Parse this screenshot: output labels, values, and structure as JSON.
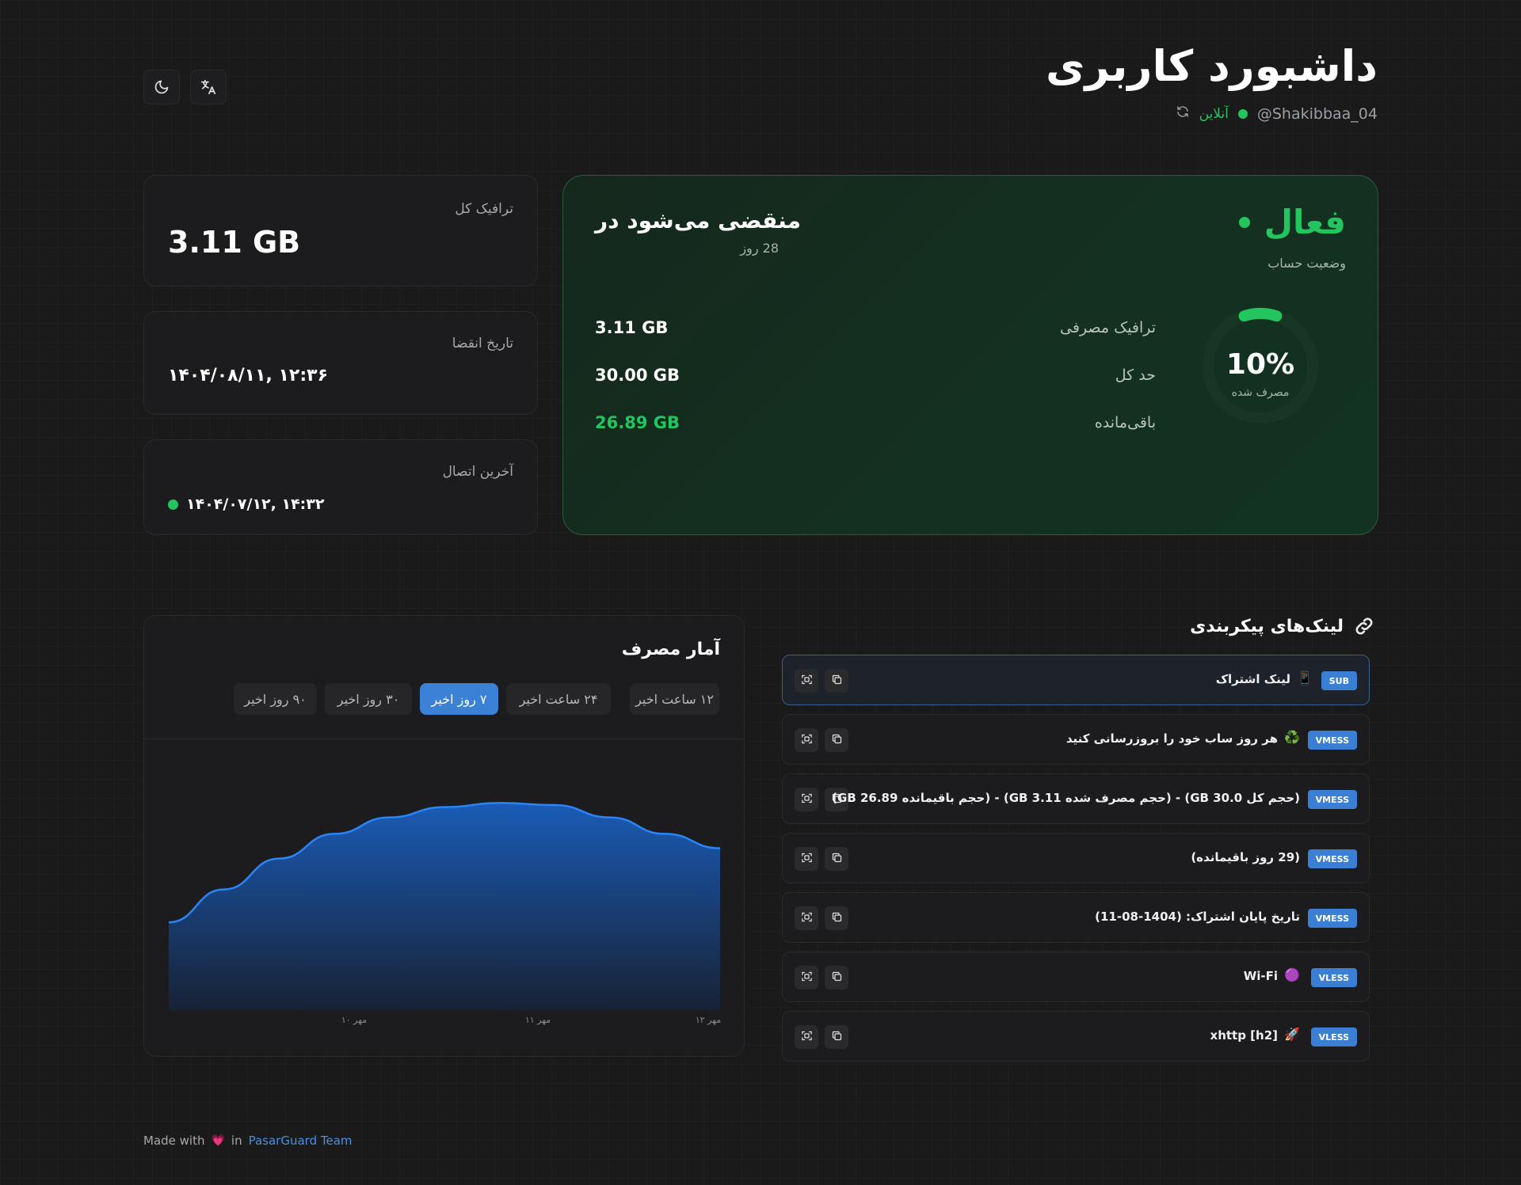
{
  "header": {
    "title": "داشبورد کاربری",
    "username": "@Shakibbaa_04",
    "online_label": "آنلاین",
    "theme_icon": "moon-icon",
    "language_icon": "translate-icon",
    "refresh_icon": "refresh-icon"
  },
  "info_cards": {
    "total_traffic": {
      "label": "ترافیک کل",
      "value": "3.11 GB"
    },
    "expiry_date": {
      "label": "تاریخ انقضا",
      "value": "۱۴۰۴/۰۸/۱۱, ۱۲:۳۶"
    },
    "last_connection": {
      "label": "آخرین اتصال",
      "value": "۱۴۰۴/۰۷/۱۲, ۱۴:۳۲"
    }
  },
  "status": {
    "state": "فعال",
    "state_label": "وضعیت حساب",
    "expires_title": "منقضی می‌شود در",
    "expires_days": "28 روز",
    "percent_text": "10%",
    "percent_value": 10,
    "percent_label": "مصرف شده",
    "rows": [
      {
        "label": "ترافیک مصرفی",
        "value": "3.11 GB"
      },
      {
        "label": "حد کل",
        "value": "30.00 GB"
      },
      {
        "label": "باقی‌مانده",
        "value": "26.89 GB"
      }
    ],
    "accent_color": "#22c55e"
  },
  "usage_stats": {
    "title": "آمار مصرف",
    "ranges": [
      "۱۲ ساعت اخیر",
      "۲۴ ساعت اخیر",
      "۷ روز اخیر",
      "۳۰ روز اخیر",
      "۹۰ روز اخیر"
    ],
    "active_range": "۷ روز اخیر"
  },
  "chart_data": {
    "type": "area",
    "x_tick_labels": [
      "۱۰ مهر",
      "۱۱ مهر",
      "۱۲ مهر"
    ],
    "series_color": "#1d6fe0",
    "points": [
      {
        "x": 0.0,
        "y": 0.38
      },
      {
        "x": 0.1,
        "y": 0.54
      },
      {
        "x": 0.2,
        "y": 0.69
      },
      {
        "x": 0.3,
        "y": 0.81
      },
      {
        "x": 0.4,
        "y": 0.89
      },
      {
        "x": 0.5,
        "y": 0.94
      },
      {
        "x": 0.6,
        "y": 0.96
      },
      {
        "x": 0.7,
        "y": 0.95
      },
      {
        "x": 0.8,
        "y": 0.89
      },
      {
        "x": 0.9,
        "y": 0.81
      },
      {
        "x": 1.0,
        "y": 0.74
      }
    ],
    "grid": false
  },
  "links": {
    "title": "لینک‌های پیکربندی",
    "title_icon": "link-icon",
    "items": [
      {
        "badge": "SUB",
        "emoji": "📱",
        "title": "لینک اشتراک"
      },
      {
        "badge": "VMESS",
        "emoji": "♻️",
        "title": "هر روز ساب خود را بروزرسانی کنید"
      },
      {
        "badge": "VMESS",
        "emoji": "",
        "title": "(حجم کل GB 30.0) - (حجم مصرف شده GB 3.11) - (حجم باقیمانده GB 26.89)"
      },
      {
        "badge": "VMESS",
        "emoji": "",
        "title": "(29 روز باقیمانده)"
      },
      {
        "badge": "VMESS",
        "emoji": "",
        "title": "تاریخ پایان اشتراک: (1404-08-11)"
      },
      {
        "badge": "VLESS",
        "emoji": "🟣",
        "title": "Wi-Fi"
      },
      {
        "badge": "VLESS",
        "emoji": "🚀",
        "title": "xhttp [h2]"
      }
    ]
  },
  "footer": {
    "made_with": "Made with",
    "heart": "💗",
    "in": "in",
    "team": "PasarGuard Team"
  }
}
